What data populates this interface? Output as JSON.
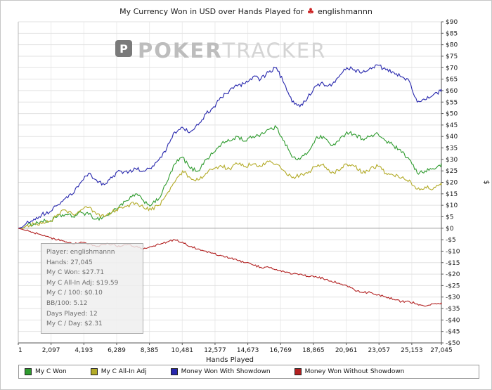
{
  "title": {
    "text": "My Currency Won in USD over Hands Played for",
    "site_icon_glyph": "♣",
    "player": "englishmannn"
  },
  "watermark": {
    "icon_letter": "P",
    "bold": "POKER",
    "light": "TRACKER"
  },
  "tooltip": {
    "lines": [
      "Player: englishmannn",
      "Hands: 27,045",
      "My C Won: $27.71",
      "My C All-In Adj: $19.59",
      "My C / 100: $0.10",
      "BB/100: 5.12",
      "Days Played: 12",
      "My C / Day: $2.31"
    ]
  },
  "chart_data": {
    "type": "line",
    "title": "My Currency Won in USD over Hands Played for englishmannn",
    "xlabel": "Hands Played",
    "ylabel": "$",
    "grid": true,
    "legend_position": "bottom",
    "ylim": [
      -50,
      90
    ],
    "ytick_step": 5,
    "xlim": [
      1,
      27045
    ],
    "xticks": [
      1,
      2097,
      4193,
      6289,
      8385,
      10481,
      12577,
      14673,
      16769,
      18865,
      20961,
      23057,
      25153,
      27045
    ],
    "xtick_labels": [
      "1",
      "2,097",
      "4,193",
      "6,289",
      "8,385",
      "10,481",
      "12,577",
      "14,673",
      "16,769",
      "18,865",
      "20,961",
      "23,057",
      "25,153",
      "27,045"
    ],
    "x": [
      1,
      500,
      1000,
      1500,
      2000,
      2500,
      3000,
      3500,
      4000,
      4500,
      5000,
      5500,
      6000,
      6500,
      7000,
      7500,
      8000,
      8500,
      9000,
      9500,
      10000,
      10500,
      11000,
      11500,
      12000,
      12500,
      13000,
      13500,
      14000,
      14500,
      15000,
      15500,
      16000,
      16500,
      17000,
      17500,
      18000,
      18500,
      19000,
      19500,
      20000,
      20500,
      21000,
      21500,
      22000,
      22500,
      23000,
      23500,
      24000,
      24500,
      25000,
      25500,
      26000,
      26500,
      27000,
      27045
    ],
    "series": [
      {
        "name": "My C Won",
        "color": "#2e9b2e",
        "final_value": 27.71,
        "values": [
          0,
          1,
          2,
          3,
          3,
          5,
          6,
          5,
          7,
          6,
          4,
          5,
          7,
          10,
          12,
          15,
          12,
          10,
          13,
          20,
          28,
          31,
          26,
          25,
          30,
          33,
          37,
          38,
          40,
          38,
          40,
          41,
          43,
          44,
          38,
          31,
          30,
          33,
          39,
          40,
          36,
          38,
          42,
          41,
          39,
          40,
          41,
          38,
          36,
          33,
          30,
          24,
          25,
          26,
          27,
          27.71
        ]
      },
      {
        "name": "My C All-In Adj",
        "color": "#b3ab28",
        "final_value": 19.59,
        "values": [
          0,
          1,
          2,
          2,
          3,
          6,
          8,
          6,
          8,
          9,
          6,
          5,
          7,
          9,
          10,
          11,
          9,
          8,
          10,
          15,
          20,
          25,
          22,
          21,
          24,
          26,
          27,
          26,
          28,
          27,
          28,
          27,
          29,
          28,
          25,
          22,
          23,
          24,
          27,
          28,
          24,
          25,
          28,
          27,
          24,
          26,
          27,
          24,
          23,
          22,
          21,
          17,
          18,
          17,
          19,
          19.59
        ]
      },
      {
        "name": "Money Won With Showdown",
        "color": "#2727ad",
        "final_value": 60.5,
        "values": [
          0,
          2,
          4,
          6,
          7,
          10,
          13,
          15,
          20,
          24,
          21,
          19,
          22,
          25,
          24,
          26,
          25,
          26,
          30,
          35,
          42,
          44,
          42,
          45,
          50,
          53,
          57,
          60,
          62,
          63,
          66,
          65,
          68,
          70,
          63,
          55,
          53,
          57,
          62,
          63,
          62,
          66,
          70,
          69,
          68,
          70,
          71,
          69,
          68,
          66,
          64,
          55,
          56,
          58,
          60,
          60.5
        ]
      },
      {
        "name": "Money Won Without Showdown",
        "color": "#b22020",
        "final_value": -32.8,
        "values": [
          0,
          -1,
          -2,
          -3,
          -4,
          -5,
          -6,
          -7,
          -6,
          -7,
          -8,
          -7,
          -7,
          -8,
          -7,
          -8,
          -9,
          -8,
          -7,
          -6,
          -5,
          -6,
          -8,
          -9,
          -10,
          -11,
          -12,
          -13,
          -14,
          -15,
          -16,
          -17,
          -17,
          -18,
          -19,
          -20,
          -20,
          -21,
          -21,
          -22,
          -23,
          -24,
          -25,
          -27,
          -28,
          -28,
          -29,
          -30,
          -31,
          -32,
          -32,
          -33,
          -34,
          -33,
          -33,
          -32.8
        ]
      }
    ]
  }
}
